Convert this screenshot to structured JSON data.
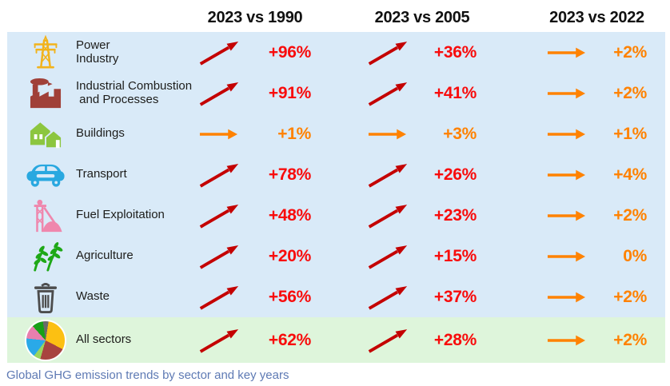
{
  "header": {
    "columns": [
      "2023 vs 1990",
      "2023 vs 2005",
      "2023 vs 2022"
    ]
  },
  "table": {
    "rows": [
      {
        "sector": "Power Industry",
        "label_lines": [
          "Power",
          "Industry"
        ],
        "icon": "power-pylon-icon",
        "highlight": false,
        "cells": [
          {
            "trend": "up",
            "value": "+96%"
          },
          {
            "trend": "up",
            "value": "+36%"
          },
          {
            "trend": "flat",
            "value": "+2%"
          }
        ]
      },
      {
        "sector": "Industrial Combustion and Processes",
        "label_lines": [
          "Industrial Combustion",
          " and Processes"
        ],
        "icon": "factory-icon",
        "highlight": false,
        "cells": [
          {
            "trend": "up",
            "value": "+91%"
          },
          {
            "trend": "up",
            "value": "+41%"
          },
          {
            "trend": "flat",
            "value": "+2%"
          }
        ]
      },
      {
        "sector": "Buildings",
        "label_lines": [
          "Buildings"
        ],
        "icon": "houses-icon",
        "highlight": false,
        "cells": [
          {
            "trend": "flat",
            "value": "+1%"
          },
          {
            "trend": "flat",
            "value": "+3%"
          },
          {
            "trend": "flat",
            "value": "+1%"
          }
        ]
      },
      {
        "sector": "Transport",
        "label_lines": [
          "Transport"
        ],
        "icon": "car-icon",
        "highlight": false,
        "cells": [
          {
            "trend": "up",
            "value": "+78%"
          },
          {
            "trend": "up",
            "value": "+26%"
          },
          {
            "trend": "flat",
            "value": "+4%"
          }
        ]
      },
      {
        "sector": "Fuel Exploitation",
        "label_lines": [
          "Fuel Exploitation"
        ],
        "icon": "mine-headframe-icon",
        "highlight": false,
        "cells": [
          {
            "trend": "up",
            "value": "+48%"
          },
          {
            "trend": "up",
            "value": "+23%"
          },
          {
            "trend": "flat",
            "value": "+2%"
          }
        ]
      },
      {
        "sector": "Agriculture",
        "label_lines": [
          "Agriculture"
        ],
        "icon": "wheat-icon",
        "highlight": false,
        "cells": [
          {
            "trend": "up",
            "value": "+20%"
          },
          {
            "trend": "up",
            "value": "+15%"
          },
          {
            "trend": "flat",
            "value": "0%"
          }
        ]
      },
      {
        "sector": "Waste",
        "label_lines": [
          "Waste"
        ],
        "icon": "trash-bin-icon",
        "highlight": false,
        "cells": [
          {
            "trend": "up",
            "value": "+56%"
          },
          {
            "trend": "up",
            "value": "+37%"
          },
          {
            "trend": "flat",
            "value": "+2%"
          }
        ]
      },
      {
        "sector": "All sectors",
        "label_lines": [
          "All sectors"
        ],
        "icon": "pie-chart-icon",
        "highlight": true,
        "cells": [
          {
            "trend": "up",
            "value": "+62%"
          },
          {
            "trend": "up",
            "value": "+28%"
          },
          {
            "trend": "flat",
            "value": "+2%"
          }
        ]
      }
    ]
  },
  "caption": "Global GHG emission trends by sector and key years",
  "colors": {
    "row_background": "#d9eaf8",
    "highlight_row_background": "#def5db",
    "up_arrow": "#c40000",
    "up_value": "#f80c0c",
    "flat_arrow": "#ff8201",
    "flat_value": "#ff8201",
    "header_text": "#111111",
    "caption_text": "#5e7ab4"
  },
  "chart_data": {
    "type": "table",
    "title": "Global GHG emission trends by sector and key years",
    "columns": [
      "2023 vs 1990",
      "2023 vs 2005",
      "2023 vs 2022"
    ],
    "rows": [
      {
        "sector": "Power Industry",
        "values_pct": [
          96,
          36,
          2
        ],
        "trends": [
          "up",
          "up",
          "flat"
        ]
      },
      {
        "sector": "Industrial Combustion and Processes",
        "values_pct": [
          91,
          41,
          2
        ],
        "trends": [
          "up",
          "up",
          "flat"
        ]
      },
      {
        "sector": "Buildings",
        "values_pct": [
          1,
          3,
          1
        ],
        "trends": [
          "flat",
          "flat",
          "flat"
        ]
      },
      {
        "sector": "Transport",
        "values_pct": [
          78,
          26,
          4
        ],
        "trends": [
          "up",
          "up",
          "flat"
        ]
      },
      {
        "sector": "Fuel Exploitation",
        "values_pct": [
          48,
          23,
          2
        ],
        "trends": [
          "up",
          "up",
          "flat"
        ]
      },
      {
        "sector": "Agriculture",
        "values_pct": [
          20,
          15,
          0
        ],
        "trends": [
          "up",
          "up",
          "flat"
        ]
      },
      {
        "sector": "Waste",
        "values_pct": [
          56,
          37,
          2
        ],
        "trends": [
          "up",
          "up",
          "flat"
        ]
      },
      {
        "sector": "All sectors",
        "values_pct": [
          62,
          28,
          2
        ],
        "trends": [
          "up",
          "up",
          "flat"
        ]
      }
    ]
  }
}
